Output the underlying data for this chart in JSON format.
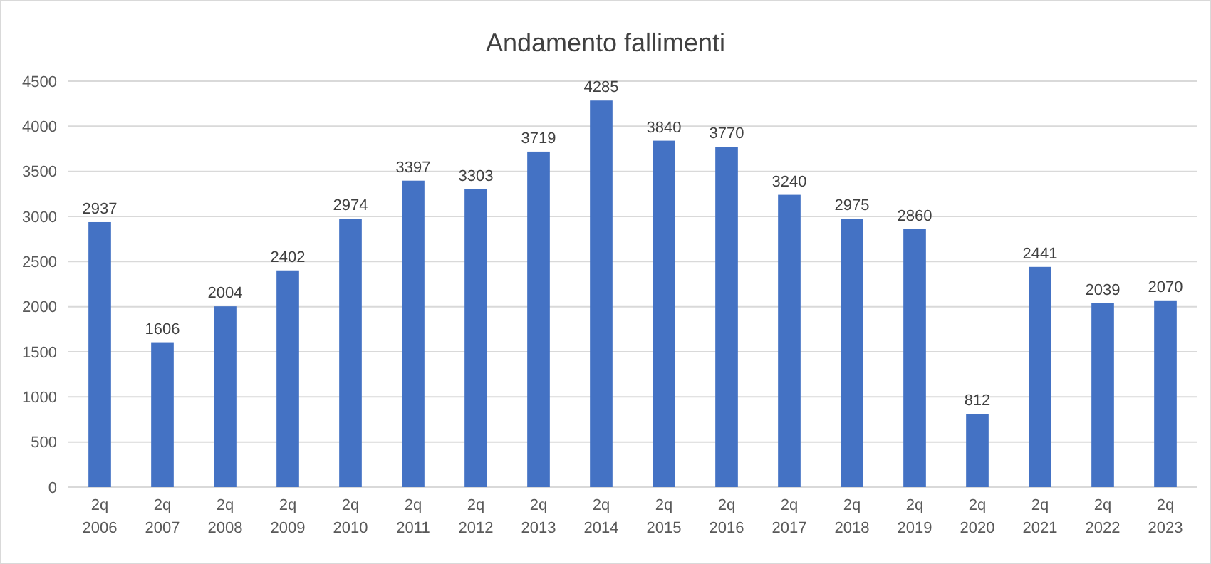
{
  "chart_data": {
    "type": "bar",
    "title": "Andamento fallimenti",
    "categories": [
      "2q 2006",
      "2q 2007",
      "2q 2008",
      "2q 2009",
      "2q 2010",
      "2q 2011",
      "2q 2012",
      "2q 2013",
      "2q 2014",
      "2q 2015",
      "2q 2016",
      "2q 2017",
      "2q 2018",
      "2q 2019",
      "2q 2020",
      "2q 2021",
      "2q 2022",
      "2q 2023"
    ],
    "values": [
      2937,
      1606,
      2004,
      2402,
      2974,
      3397,
      3303,
      3719,
      4285,
      3840,
      3770,
      3240,
      2975,
      2860,
      812,
      2441,
      2039,
      2070
    ],
    "color": "#4472c4",
    "ylim": [
      0,
      4500
    ],
    "yticks": [
      0,
      500,
      1000,
      1500,
      2000,
      2500,
      3000,
      3500,
      4000,
      4500
    ],
    "grid": "y",
    "data_labels": true
  }
}
